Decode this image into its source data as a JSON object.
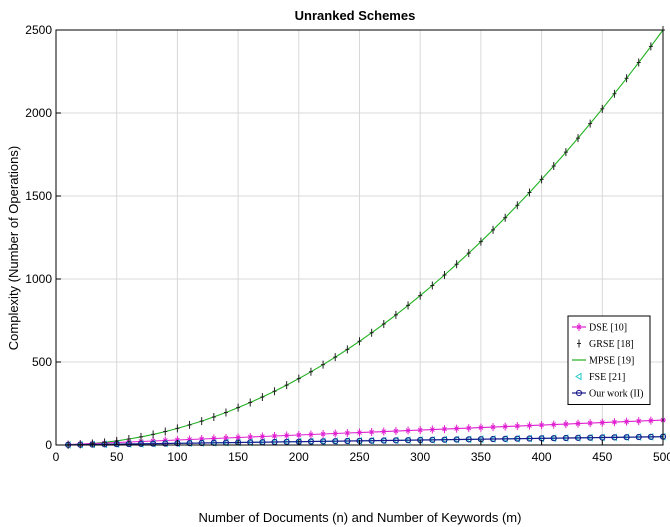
{
  "chart_data": {
    "type": "line",
    "title": "Unranked Schemes",
    "xlabel": "Number of Documents (n) and Number of Keywords (m)",
    "ylabel": "Complexity (Number of Operations)",
    "xlim": [
      0,
      500
    ],
    "ylim": [
      0,
      2500
    ],
    "x_ticks": [
      "0",
      "50",
      "100",
      "150",
      "200",
      "250",
      "300",
      "350",
      "400",
      "450",
      "500"
    ],
    "y_ticks": [
      "0",
      "500",
      "1000",
      "1500",
      "2000",
      "2500"
    ],
    "grid": true,
    "legend_position": "right",
    "x": [
      10,
      20,
      30,
      40,
      50,
      60,
      70,
      80,
      90,
      100,
      110,
      120,
      130,
      140,
      150,
      160,
      170,
      180,
      190,
      200,
      210,
      220,
      230,
      240,
      250,
      260,
      270,
      280,
      290,
      300,
      310,
      320,
      330,
      340,
      350,
      360,
      370,
      380,
      390,
      400,
      410,
      420,
      430,
      440,
      450,
      460,
      470,
      480,
      490,
      500
    ],
    "series": [
      {
        "name": "DSE [10]",
        "color": "#e020d0",
        "marker": "star",
        "values": [
          3,
          6,
          9,
          12,
          15,
          18,
          21,
          24,
          27,
          30,
          33,
          36,
          39,
          42,
          45,
          48,
          51,
          54,
          57,
          60,
          63,
          66,
          69,
          72,
          75,
          78,
          81,
          84,
          87,
          90,
          93,
          96,
          99,
          102,
          105,
          108,
          111,
          114,
          117,
          120,
          123,
          126,
          129,
          132,
          135,
          138,
          141,
          144,
          147,
          150
        ]
      },
      {
        "name": "GRSE [18]",
        "color": "#222222",
        "marker": "plus",
        "values": [
          1,
          4,
          9,
          16,
          25,
          36,
          49,
          64,
          81,
          100,
          121,
          144,
          169,
          196,
          225,
          256,
          289,
          324,
          361,
          400,
          441,
          484,
          529,
          576,
          625,
          676,
          729,
          784,
          841,
          900,
          961,
          1024,
          1089,
          1156,
          1225,
          1296,
          1369,
          1444,
          1521,
          1600,
          1681,
          1764,
          1849,
          1936,
          2025,
          2116,
          2209,
          2304,
          2401,
          2500
        ]
      },
      {
        "name": "MPSE [19]",
        "color": "#20b020",
        "marker": "none",
        "values": [
          1,
          4,
          9,
          16,
          25,
          36,
          49,
          64,
          81,
          100,
          121,
          144,
          169,
          196,
          225,
          256,
          289,
          324,
          361,
          400,
          441,
          484,
          529,
          576,
          625,
          676,
          729,
          784,
          841,
          900,
          961,
          1024,
          1089,
          1156,
          1225,
          1296,
          1369,
          1444,
          1521,
          1600,
          1681,
          1764,
          1849,
          1936,
          2025,
          2116,
          2209,
          2304,
          2401,
          2500
        ]
      },
      {
        "name": "FSE [21]",
        "color": "#20c8c8",
        "marker": "triangle-left",
        "values": [
          1,
          2,
          3,
          4,
          5,
          6,
          7,
          8,
          9,
          10,
          11,
          12,
          13,
          14,
          15,
          16,
          17,
          18,
          19,
          20,
          21,
          22,
          23,
          24,
          25,
          26,
          27,
          28,
          29,
          30,
          31,
          32,
          33,
          34,
          35,
          36,
          37,
          38,
          39,
          40,
          41,
          42,
          43,
          44,
          45,
          46,
          47,
          48,
          49,
          50
        ]
      },
      {
        "name": "Our work (II)",
        "color": "#1a1a8c",
        "marker": "circle",
        "values": [
          1,
          2,
          3,
          4,
          5,
          6,
          7,
          8,
          9,
          10,
          11,
          12,
          13,
          14,
          15,
          16,
          17,
          18,
          19,
          20,
          21,
          22,
          23,
          24,
          25,
          26,
          27,
          28,
          29,
          30,
          31,
          32,
          33,
          34,
          35,
          36,
          37,
          38,
          39,
          40,
          41,
          42,
          43,
          44,
          45,
          46,
          47,
          48,
          49,
          50
        ]
      }
    ]
  }
}
